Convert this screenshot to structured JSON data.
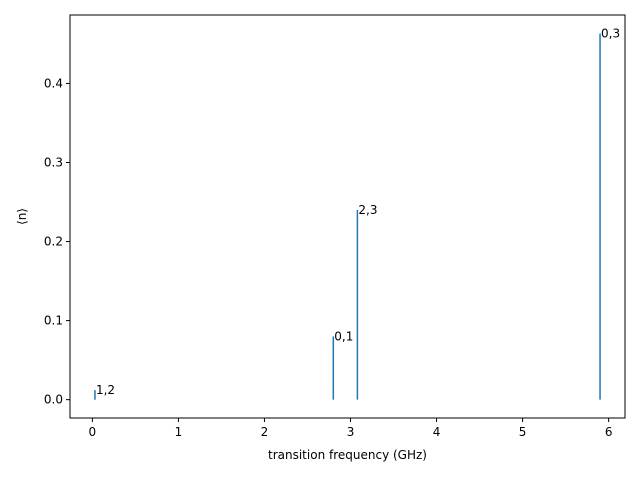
{
  "chart_data": {
    "type": "stem",
    "title": "",
    "xlabel": "transition frequency (GHz)",
    "ylabel": "⟨n⟩",
    "xlim": [
      -0.26,
      6.19
    ],
    "ylim": [
      -0.0232,
      0.4866
    ],
    "xticks": [
      0,
      1,
      2,
      3,
      4,
      5,
      6
    ],
    "yticks": [
      0.0,
      0.1,
      0.2,
      0.3,
      0.4
    ],
    "xtick_labels": [
      "0",
      "1",
      "2",
      "3",
      "4",
      "5",
      "6"
    ],
    "ytick_labels": [
      "0.0",
      "0.1",
      "0.2",
      "0.3",
      "0.4"
    ],
    "grid": false,
    "color": "#1f77b4",
    "lines": [
      {
        "x": 0.03,
        "y": 0.012,
        "label": "1,2"
      },
      {
        "x": 2.8,
        "y": 0.08,
        "label": "0,1"
      },
      {
        "x": 3.08,
        "y": 0.24,
        "label": "2,3"
      },
      {
        "x": 5.9,
        "y": 0.463,
        "label": "0,3"
      }
    ]
  }
}
